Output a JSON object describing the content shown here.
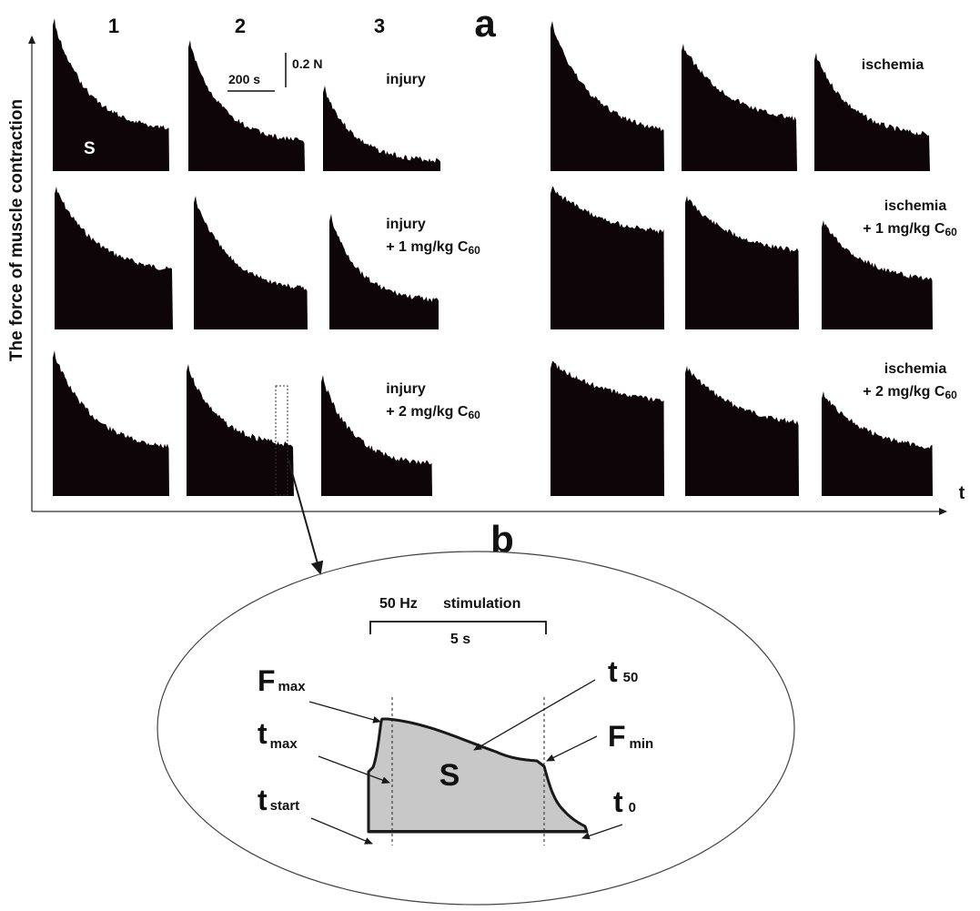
{
  "panel_a": {
    "label": "a",
    "y_axis_label": "The force of muscle contraction",
    "x_axis_label": "t",
    "columns": [
      "1",
      "2",
      "3"
    ],
    "scale_time": "200 s",
    "scale_force": "0.2 N",
    "area_label": "S",
    "left_rows": [
      {
        "line1": "injury",
        "line2": ""
      },
      {
        "line1": "injury",
        "line2": "+ 1 mg/kg C",
        "sub": "60"
      },
      {
        "line1": "injury",
        "line2": "+ 2 mg/kg C",
        "sub": "60"
      }
    ],
    "right_rows": [
      {
        "line1": "ischemia",
        "line2": ""
      },
      {
        "line1": "ischemia",
        "line2": "+ 1 mg/kg C",
        "sub": "60"
      },
      {
        "line1": "ischemia",
        "line2": "+ 2 mg/kg C",
        "sub": "60"
      }
    ]
  },
  "panel_b": {
    "label": "b",
    "stim_freq": "50 Hz",
    "stim_text": "stimulation",
    "duration": "5 s",
    "area_label": "S",
    "labels": {
      "fmax": {
        "main": "F",
        "sub": "max"
      },
      "tmax": {
        "main": "t",
        "sub": "max"
      },
      "tstart": {
        "main": "t",
        "sub": "start"
      },
      "t50": {
        "main": "t",
        "sub": "50"
      },
      "fmin": {
        "main": "F",
        "sub": "min"
      },
      "t0": {
        "main": "t",
        "sub": "0"
      }
    }
  },
  "colors": {
    "trace": "#0d0508",
    "area": "#c8c8c8",
    "line": "#1a1a1a"
  }
}
